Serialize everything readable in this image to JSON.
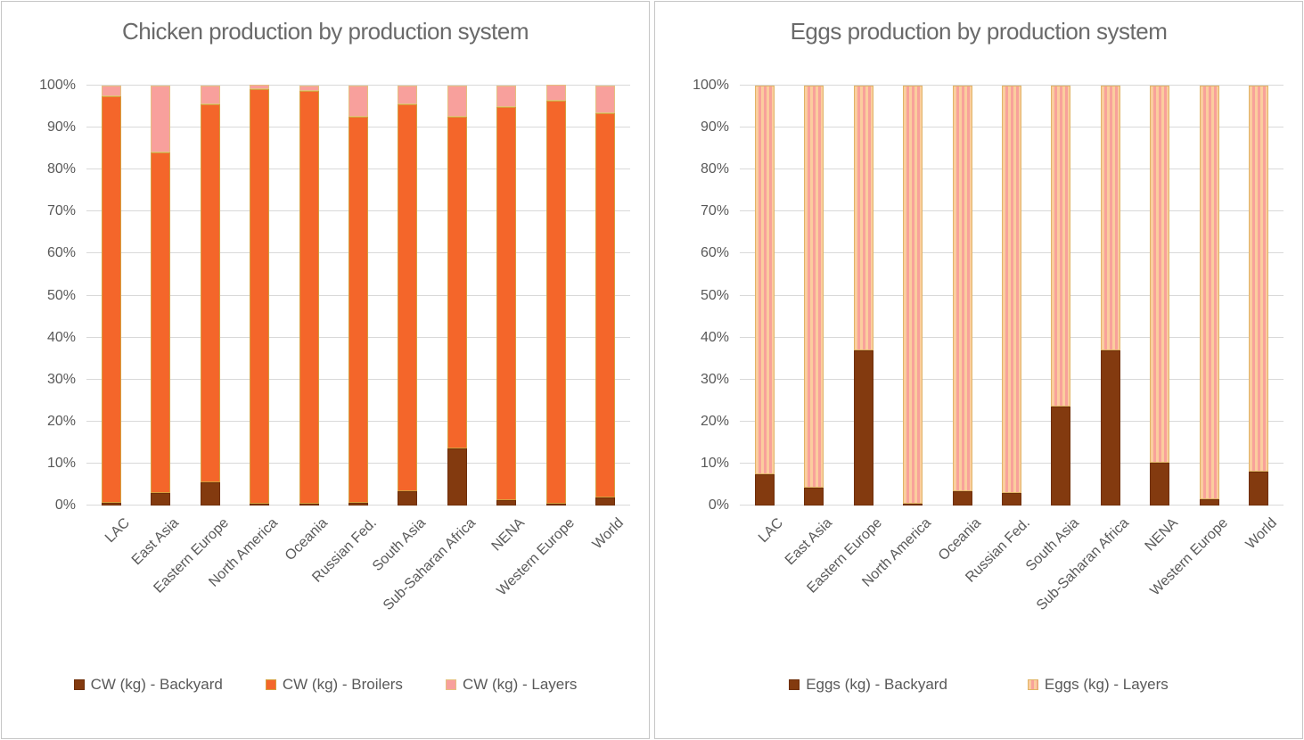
{
  "figure": {
    "background": "#ffffff",
    "border_color": "#c6c6c6",
    "gridline_color": "#d9d9d9",
    "title_color": "#6a6a6a",
    "label_color": "#595959"
  },
  "chart_data": [
    {
      "type": "bar",
      "stacked": true,
      "units": "percent",
      "title": "Chicken production by production system",
      "xlabel": "",
      "ylabel": "",
      "ylim": [
        0,
        100
      ],
      "grid": true,
      "legend_position": "bottom",
      "ytick_values": [
        0,
        10,
        20,
        30,
        40,
        50,
        60,
        70,
        80,
        90,
        100
      ],
      "ytick_labels": [
        "0%",
        "10%",
        "20%",
        "30%",
        "40%",
        "50%",
        "60%",
        "70%",
        "80%",
        "90%",
        "100%"
      ],
      "categories": [
        "LAC",
        "East Asia",
        "Eastern Europe",
        "North America",
        "Oceania",
        "Russian Fed.",
        "South Asia",
        "Sub-Saharan Africa",
        "NENA",
        "Western Europe",
        "World"
      ],
      "series": [
        {
          "name": "CW (kg) - Backyard",
          "color": "#833a0f",
          "border": "#6f2f09",
          "pattern": "solid",
          "values": [
            0.6,
            3.0,
            5.5,
            0.2,
            0.4,
            0.7,
            3.5,
            13.5,
            1.3,
            0.3,
            2.0
          ]
        },
        {
          "name": "CW (kg) - Broilers",
          "color": "#f4662a",
          "border": "#d59f3e",
          "pattern": "solid",
          "values": [
            96.9,
            81.0,
            90.0,
            98.8,
            98.4,
            91.8,
            92.0,
            79.0,
            93.7,
            96.0,
            91.5
          ]
        },
        {
          "name": "CW (kg) - Layers",
          "color": "#f8a09c",
          "border": "#e5c080",
          "pattern": "solid",
          "values": [
            2.5,
            16.0,
            4.5,
            1.0,
            1.2,
            7.5,
            4.5,
            7.5,
            5.0,
            3.7,
            6.5
          ]
        }
      ]
    },
    {
      "type": "bar",
      "stacked": true,
      "units": "percent",
      "title": "Eggs production by production system",
      "xlabel": "",
      "ylabel": "",
      "ylim": [
        0,
        100
      ],
      "grid": true,
      "legend_position": "bottom",
      "ytick_values": [
        0,
        10,
        20,
        30,
        40,
        50,
        60,
        70,
        80,
        90,
        100
      ],
      "ytick_labels": [
        "0%",
        "10%",
        "20%",
        "30%",
        "40%",
        "50%",
        "60%",
        "70%",
        "80%",
        "90%",
        "100%"
      ],
      "categories": [
        "LAC",
        "East Asia",
        "Eastern Europe",
        "North America",
        "Oceania",
        "Russian Fed.",
        "South Asia",
        "Sub-Saharan Africa",
        "NENA",
        "Western Europe",
        "World"
      ],
      "series": [
        {
          "name": "Eggs (kg) - Backyard",
          "color": "#833a0f",
          "border": "#6f2f09",
          "pattern": "solid",
          "values": [
            7.4,
            4.3,
            37.0,
            0.4,
            3.4,
            3.0,
            23.5,
            37.0,
            10.3,
            1.4,
            8.0
          ]
        },
        {
          "name": "Eggs (kg) - Layers",
          "color": "#f8a29a",
          "border": "#e0b467",
          "pattern": "stripes",
          "stripe_colors": [
            "#fbcd9e",
            "#f8a29a"
          ],
          "values": [
            92.6,
            95.7,
            63.0,
            99.6,
            96.6,
            97.0,
            76.5,
            63.0,
            89.7,
            98.6,
            92.0
          ]
        }
      ]
    }
  ]
}
